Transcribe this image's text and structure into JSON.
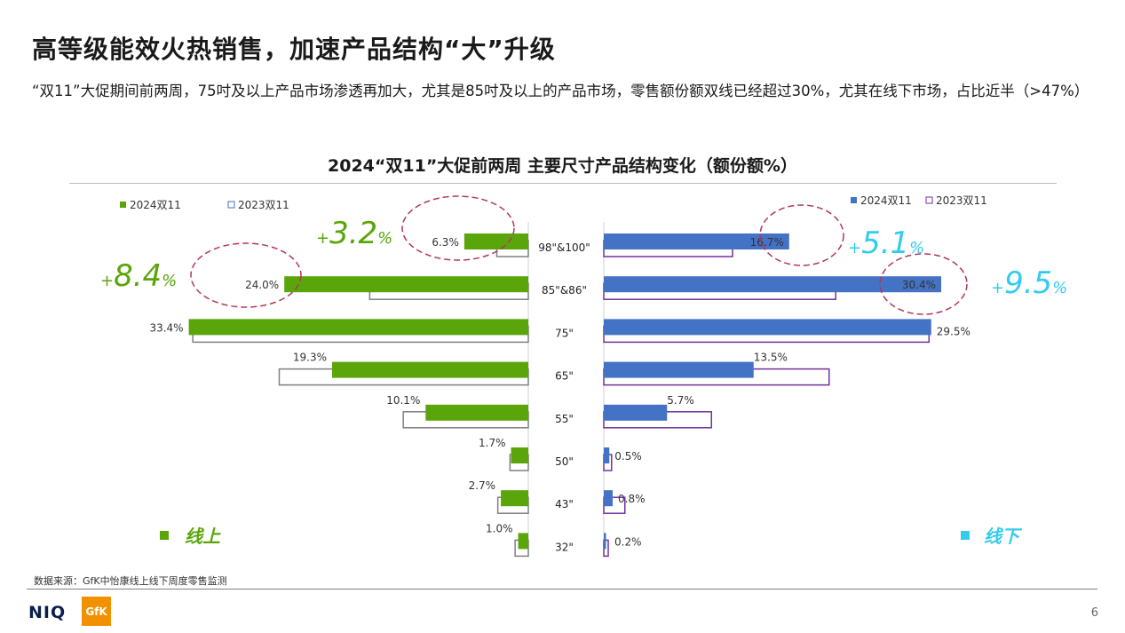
{
  "page": {
    "title": "高等级能效火热销售，加速产品结构“大”升级",
    "subtitle": "“双11”大促期间前两周，75吋及以上产品市场渗透再加大，尤其是85吋及以上的产品市场，零售额份额双线已经超过30%，尤其在线下市场，占比近半（>47%）",
    "source": "数据来源：GfK中怡康线上线下周度零售监测",
    "page_number": "6",
    "logo_niq": "NIQ",
    "logo_gfk": "GfK"
  },
  "chart_data": {
    "type": "bar",
    "orientation": "horizontal-butterfly",
    "title": "2024“双11”大促前两周 主要尺寸产品结构变化（额份额%）",
    "categories": [
      "98\"&100\"",
      "85\"&86\"",
      "75\"",
      "65\"",
      "55\"",
      "50\"",
      "43\"",
      "32\""
    ],
    "panels": [
      {
        "name": "线上",
        "color": "#5aa50a",
        "legend": [
          "2024双11",
          "2023双11"
        ],
        "series": [
          {
            "name": "2024双11",
            "values": [
              6.3,
              24.0,
              33.4,
              19.3,
              10.1,
              1.7,
              2.7,
              1.0
            ],
            "labels": [
              "6.3%",
              "24.0%",
              "33.4%",
              "19.3%",
              "10.1%",
              "1.7%",
              "2.7%",
              "1.0%"
            ]
          },
          {
            "name": "2023双11",
            "values": [
              3.1,
              15.6,
              33.0,
              24.5,
              12.3,
              1.8,
              3.0,
              1.3
            ]
          }
        ],
        "callouts": [
          {
            "category": "98\"&100\"",
            "text": "3.2"
          },
          {
            "category": "85\"&86\"",
            "text": "8.4"
          }
        ]
      },
      {
        "name": "线下",
        "color": "#4472c4",
        "legend": [
          "2024双11",
          "2023双11"
        ],
        "series": [
          {
            "name": "2024双11",
            "values": [
              16.7,
              30.4,
              29.5,
              13.5,
              5.7,
              0.5,
              0.8,
              0.2
            ],
            "labels": [
              "16.7%",
              "30.4%",
              "29.5%",
              "13.5%",
              "5.7%",
              "0.5%",
              "0.8%",
              "0.2%"
            ]
          },
          {
            "name": "2023双11",
            "values": [
              11.6,
              20.9,
              29.3,
              20.3,
              9.7,
              0.7,
              1.9,
              0.4
            ]
          }
        ],
        "callouts": [
          {
            "category": "98\"&100\"",
            "text": "5.1"
          },
          {
            "category": "85\"&86\"",
            "text": "9.5"
          }
        ]
      }
    ],
    "callout_sign": "+",
    "callout_unit": "%"
  }
}
